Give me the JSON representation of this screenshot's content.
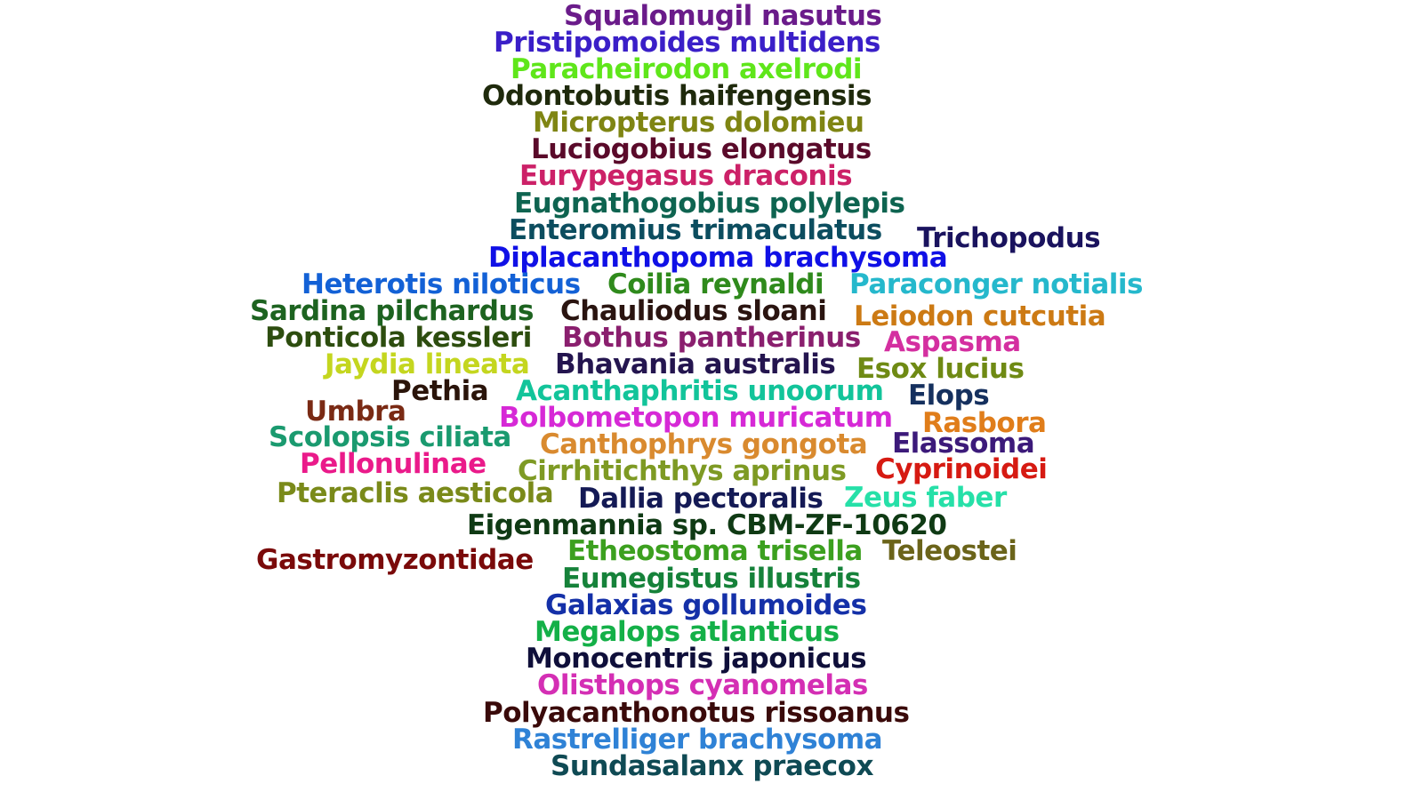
{
  "words": [
    {
      "text": "Squalomugil nasutus",
      "color": "#6a1b8a"
    },
    {
      "text": "Pristipomoides multidens",
      "color": "#3a1fc8"
    },
    {
      "text": "Paracheirodon axelrodi",
      "color": "#5fe61a"
    },
    {
      "text": "Odontobutis haifengensis",
      "color": "#1f2a0c"
    },
    {
      "text": "Micropterus dolomieu",
      "color": "#7f8513"
    },
    {
      "text": "Luciogobius elongatus",
      "color": "#5a0a2a"
    },
    {
      "text": "Eurypegasus draconis",
      "color": "#cc2168"
    },
    {
      "text": "Eugnathogobius polylepis",
      "color": "#0e6450"
    },
    {
      "text": "Enteromius trimaculatus",
      "color": "#0c4d5f"
    },
    {
      "text": "Trichopodus",
      "color": "#1a135e"
    },
    {
      "text": "Diplacanthopoma brachysoma",
      "color": "#1010e6"
    },
    {
      "text": "Heterotis niloticus",
      "color": "#1361d6"
    },
    {
      "text": "Coilia reynaldi",
      "color": "#2f8a1c"
    },
    {
      "text": "Paraconger notialis",
      "color": "#25b8cc"
    },
    {
      "text": "Sardina pilchardus",
      "color": "#1d6320"
    },
    {
      "text": "Chauliodus sloani",
      "color": "#2a1410"
    },
    {
      "text": "Leiodon cutcutia",
      "color": "#cc7a14"
    },
    {
      "text": "Ponticola kessleri",
      "color": "#2d4d0f"
    },
    {
      "text": "Bothus pantherinus",
      "color": "#8a1f6e"
    },
    {
      "text": "Aspasma",
      "color": "#d42fa0"
    },
    {
      "text": "Jaydia lineata",
      "color": "#c4d61f"
    },
    {
      "text": "Bhavania australis",
      "color": "#24154f"
    },
    {
      "text": "Esox lucius",
      "color": "#6f8a14"
    },
    {
      "text": "Pethia",
      "color": "#2a140a"
    },
    {
      "text": "Acanthaphritis unoorum",
      "color": "#12c49a"
    },
    {
      "text": "Elops",
      "color": "#15305e"
    },
    {
      "text": "Umbra",
      "color": "#7a2a14"
    },
    {
      "text": "Bolbometopon muricatum",
      "color": "#d629d6"
    },
    {
      "text": "Rasbora",
      "color": "#e07d1a"
    },
    {
      "text": "Scolopsis ciliata",
      "color": "#1a9a6f"
    },
    {
      "text": "Canthophrys gongota",
      "color": "#d98a2f"
    },
    {
      "text": "Elassoma",
      "color": "#3c1a7a"
    },
    {
      "text": "Pellonulinae",
      "color": "#ea1a8a"
    },
    {
      "text": "Cirrhitichthys aprinus",
      "color": "#7e9a24"
    },
    {
      "text": "Cyprinoidei",
      "color": "#d61a12"
    },
    {
      "text": "Pteraclis aesticola",
      "color": "#7a8a1a"
    },
    {
      "text": "Dallia pectoralis",
      "color": "#141a55"
    },
    {
      "text": "Zeus faber",
      "color": "#26e0a8"
    },
    {
      "text": "Eigenmannia sp. CBM-ZF-10620",
      "color": "#0f3a14"
    },
    {
      "text": "Etheostoma trisella",
      "color": "#3ca01f"
    },
    {
      "text": "Teleostei",
      "color": "#6b641a"
    },
    {
      "text": "Gastromyzontidae",
      "color": "#7a0a0a"
    },
    {
      "text": "Eumegistus illustris",
      "color": "#16823a"
    },
    {
      "text": "Galaxias gollumoides",
      "color": "#1430a8"
    },
    {
      "text": "Megalops atlanticus",
      "color": "#14b048"
    },
    {
      "text": "Monocentris japonicus",
      "color": "#0f0f3a"
    },
    {
      "text": "Olisthops cyanomelas",
      "color": "#d42fb4"
    },
    {
      "text": "Polyacanthonotus rissoanus",
      "color": "#3a0a0a"
    },
    {
      "text": "Rastrelliger brachysoma",
      "color": "#2f82d6"
    },
    {
      "text": "Sundasalanx praecox",
      "color": "#0f4a54"
    }
  ]
}
